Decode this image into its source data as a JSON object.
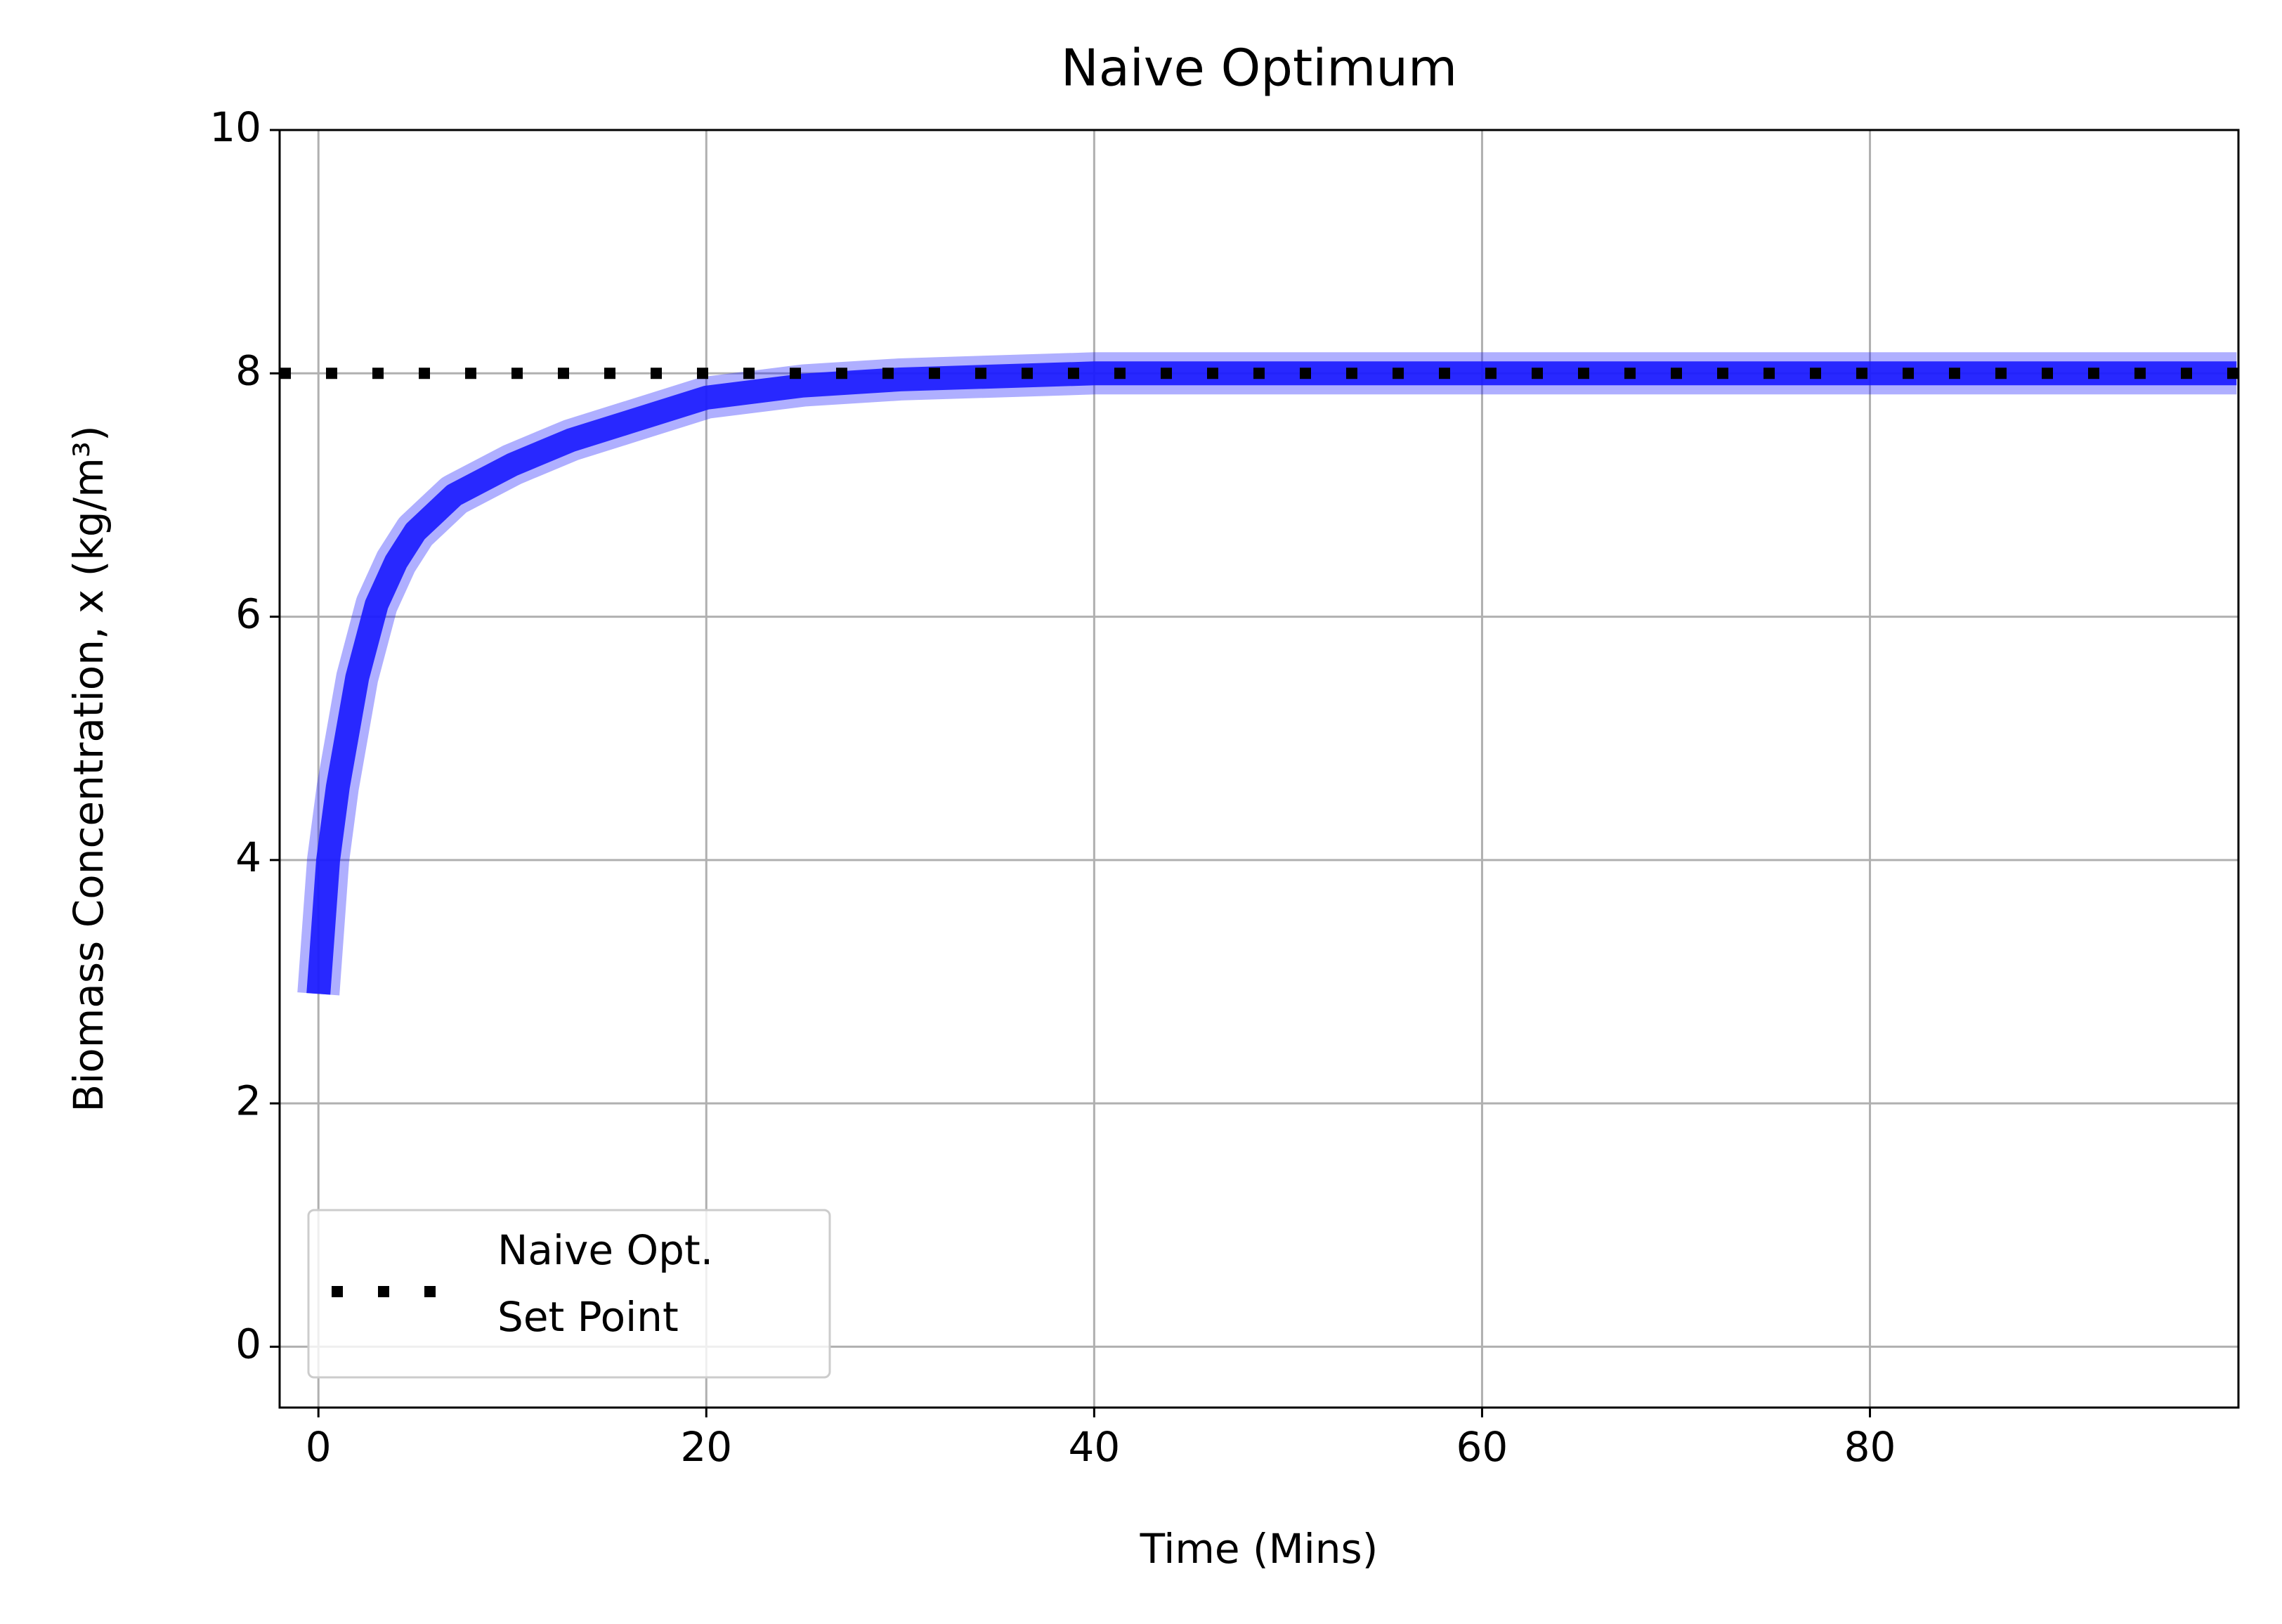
{
  "chart_data": {
    "type": "line",
    "title": "Naive Optimum",
    "x_label": "Time (Mins)",
    "y_label": "Biomass Concentration, x (kg/m³)",
    "x": [
      0,
      0.5,
      1,
      2,
      3,
      4,
      5,
      7,
      10,
      13,
      16,
      20,
      25,
      30,
      40,
      50,
      60,
      70,
      80,
      90,
      98.9
    ],
    "series": [
      {
        "color": "#1a1aff",
        "values": [
          2.9,
          4.0,
          4.6,
          5.5,
          6.1,
          6.45,
          6.7,
          7.0,
          7.25,
          7.45,
          7.6,
          7.8,
          7.9,
          7.95,
          8.0,
          8.0,
          8.0,
          8.0,
          8.0,
          8.0,
          8.0
        ]
      }
    ],
    "reference_line": {
      "name": "Naive Opt.\nSet Point",
      "value": 8,
      "color": "#000000",
      "style": "dotted"
    },
    "xlim": [
      -2,
      99
    ],
    "ylim": [
      -0.5,
      10
    ],
    "xticks": [
      0,
      20,
      40,
      60,
      80
    ],
    "yticks": [
      0,
      2,
      4,
      6,
      8,
      10
    ],
    "grid": true,
    "legend": "lower left"
  }
}
